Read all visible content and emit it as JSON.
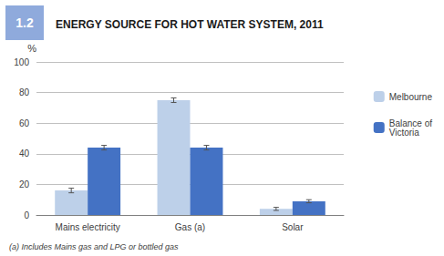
{
  "chart_data": {
    "type": "bar",
    "title": "ENERGY SOURCE FOR HOT WATER SYSTEM, 2011",
    "figure_label": "1.2",
    "ylabel": "%",
    "footnote": "(a) Includes Mains gas and LPG or bottled gas",
    "categories": [
      "Mains electricity",
      "Gas (a)",
      "Solar"
    ],
    "series": [
      {
        "name": "Melbourne",
        "color": "#bdd0e9",
        "values": [
          16,
          75,
          4
        ],
        "errors": [
          1.5,
          1.5,
          1.0
        ]
      },
      {
        "name": "Balance of\nVictoria",
        "color": "#4472c4",
        "values": [
          44,
          44,
          9
        ],
        "errors": [
          1.5,
          1.5,
          1.0
        ]
      }
    ],
    "ylim": [
      0,
      100
    ],
    "yticks": [
      0,
      20,
      40,
      60,
      80,
      100
    ],
    "grid": true,
    "legend": "right"
  }
}
